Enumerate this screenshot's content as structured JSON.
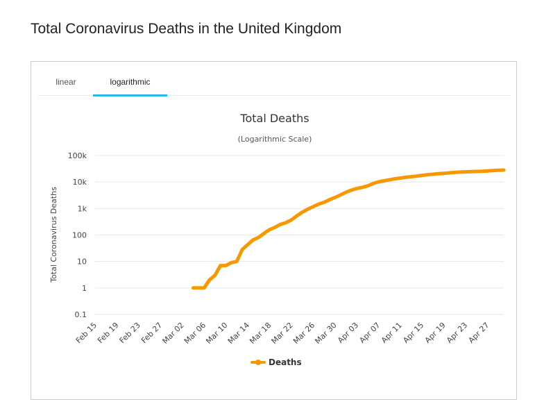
{
  "page": {
    "title": "Total Coronavirus Deaths in the United Kingdom"
  },
  "tabs": [
    {
      "label": "linear",
      "active": false
    },
    {
      "label": "logarithmic",
      "active": true
    }
  ],
  "colors": {
    "series": "#f89800",
    "tab_active": "#2ab6e7",
    "grid": "#e6e6e6"
  },
  "chart_data": {
    "type": "line",
    "title": "Total Deaths",
    "subtitle": "(Logarithmic Scale)",
    "ylabel": "Total Coronavirus Deaths",
    "xlabel": "",
    "yscale": "log",
    "ylim": [
      0.1,
      100000
    ],
    "ytick_labels": [
      "0.1",
      "1",
      "10",
      "100",
      "1k",
      "10k",
      "100k"
    ],
    "xtick_labels": [
      "Feb 15",
      "Feb 19",
      "Feb 23",
      "Feb 27",
      "Mar 02",
      "Mar 06",
      "Mar 10",
      "Mar 14",
      "Mar 18",
      "Mar 22",
      "Mar 26",
      "Mar 30",
      "Apr 03",
      "Apr 07",
      "Apr 11",
      "Apr 15",
      "Apr 19",
      "Apr 23",
      "Apr 27"
    ],
    "grid": true,
    "legend": {
      "placement": "bottom-center"
    },
    "series": [
      {
        "name": "Deaths",
        "x": [
          "Feb 15",
          "Feb 16",
          "Feb 17",
          "Feb 18",
          "Feb 19",
          "Feb 20",
          "Feb 21",
          "Feb 22",
          "Feb 23",
          "Feb 24",
          "Feb 25",
          "Feb 26",
          "Feb 27",
          "Feb 28",
          "Feb 29",
          "Mar 01",
          "Mar 02",
          "Mar 03",
          "Mar 04",
          "Mar 05",
          "Mar 06",
          "Mar 07",
          "Mar 08",
          "Mar 09",
          "Mar 10",
          "Mar 11",
          "Mar 12",
          "Mar 13",
          "Mar 14",
          "Mar 15",
          "Mar 16",
          "Mar 17",
          "Mar 18",
          "Mar 19",
          "Mar 20",
          "Mar 21",
          "Mar 22",
          "Mar 23",
          "Mar 24",
          "Mar 25",
          "Mar 26",
          "Mar 27",
          "Mar 28",
          "Mar 29",
          "Mar 30",
          "Mar 31",
          "Apr 01",
          "Apr 02",
          "Apr 03",
          "Apr 04",
          "Apr 05",
          "Apr 06",
          "Apr 07",
          "Apr 08",
          "Apr 09",
          "Apr 10",
          "Apr 11",
          "Apr 12",
          "Apr 13",
          "Apr 14",
          "Apr 15",
          "Apr 16",
          "Apr 17",
          "Apr 18",
          "Apr 19",
          "Apr 20",
          "Apr 21",
          "Apr 22",
          "Apr 23",
          "Apr 24",
          "Apr 25",
          "Apr 26",
          "Apr 27",
          "Apr 28",
          "Apr 29",
          "Apr 30"
        ],
        "values": [
          null,
          null,
          null,
          null,
          null,
          null,
          null,
          null,
          null,
          null,
          null,
          null,
          null,
          null,
          null,
          null,
          null,
          null,
          1,
          1,
          1,
          2,
          3,
          7,
          7,
          9,
          10,
          28,
          43,
          65,
          81,
          115,
          158,
          194,
          250,
          289,
          368,
          522,
          721,
          940,
          1160,
          1460,
          1700,
          2130,
          2580,
          3210,
          4070,
          4890,
          5660,
          6230,
          7130,
          8680,
          10090,
          11080,
          12040,
          13200,
          14020,
          15020,
          15800,
          16660,
          17780,
          18760,
          19600,
          20400,
          21150,
          22080,
          22900,
          23700,
          24100,
          24450,
          25000,
          25500,
          26200,
          26900,
          27700,
          28200
        ]
      }
    ]
  }
}
